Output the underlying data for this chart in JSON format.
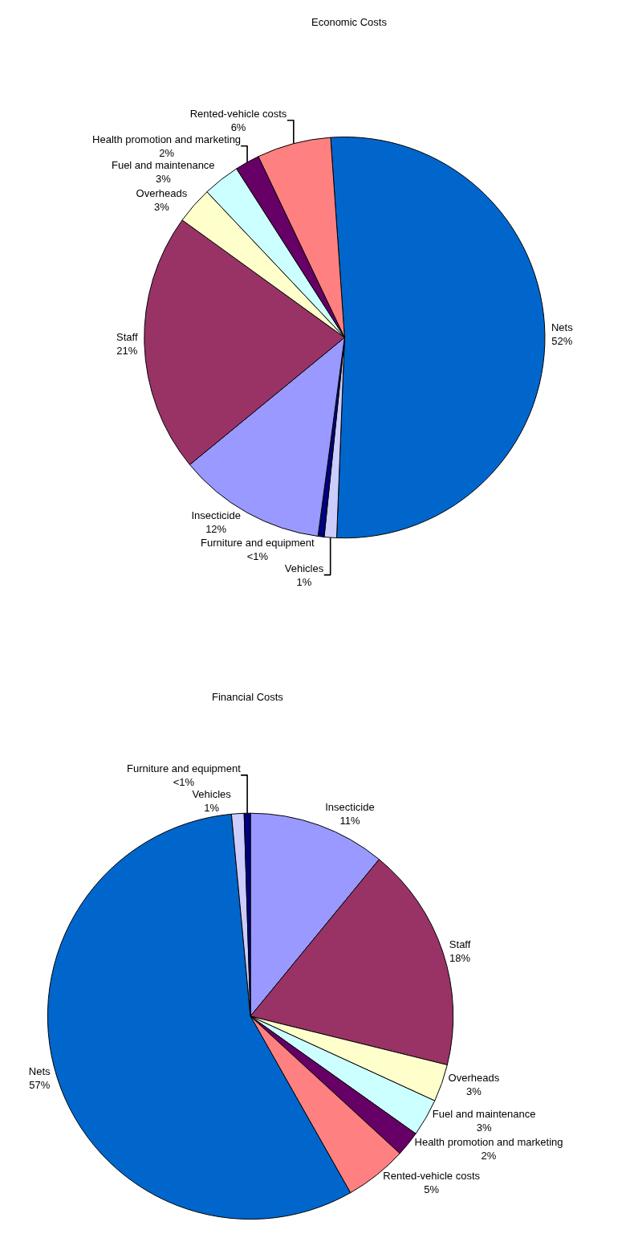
{
  "chart_data": [
    {
      "type": "pie",
      "title": "Economic Costs",
      "categories": [
        "Nets",
        "Vehicles",
        "Furniture and equipment",
        "Insecticide",
        "Staff",
        "Overheads",
        "Fuel and maintenance",
        "Health promotion and marketing",
        "Rented-vehicle costs"
      ],
      "values": [
        52,
        1,
        0.5,
        12,
        21,
        3,
        3,
        2,
        6
      ],
      "value_labels": [
        "52%",
        "1%",
        "<1%",
        "12%",
        "21%",
        "3%",
        "3%",
        "2%",
        "6%"
      ],
      "colors": [
        "#0066cc",
        "#ccccff",
        "#000080",
        "#9999ff",
        "#993366",
        "#ffffcc",
        "#ccffff",
        "#660066",
        "#ff8080"
      ],
      "legend": false
    },
    {
      "type": "pie",
      "title": "Financial Costs",
      "categories": [
        "Insecticide",
        "Staff",
        "Overheads",
        "Fuel and maintenance",
        "Health promotion and marketing",
        "Rented-vehicle costs",
        "Nets",
        "Vehicles",
        "Furniture and equipment"
      ],
      "values": [
        11,
        18,
        3,
        3,
        2,
        5,
        57,
        1,
        0.5
      ],
      "value_labels": [
        "11%",
        "18%",
        "3%",
        "3%",
        "2%",
        "5%",
        "57%",
        "1%",
        "<1%"
      ],
      "colors": [
        "#9999ff",
        "#993366",
        "#ffffcc",
        "#ccffff",
        "#660066",
        "#ff8080",
        "#0066cc",
        "#ccccff",
        "#000080"
      ],
      "legend": false
    }
  ]
}
